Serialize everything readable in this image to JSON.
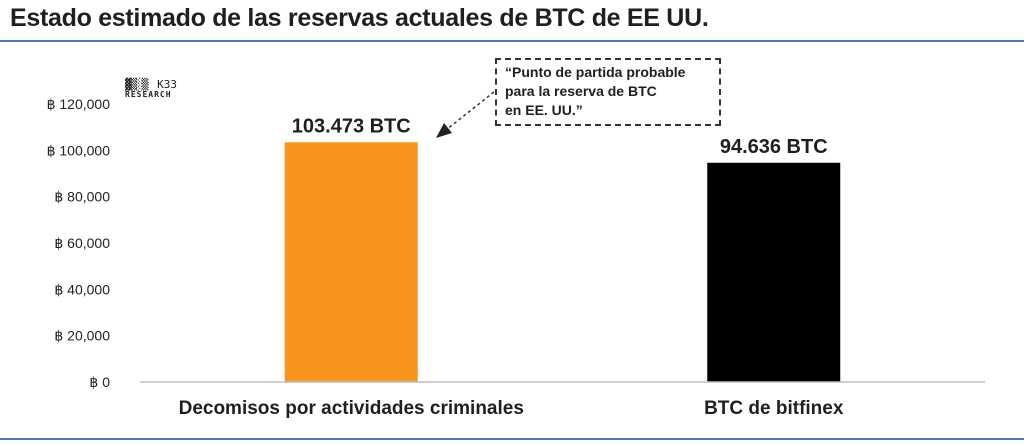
{
  "header": {
    "title": "Estado estimado de las reservas actuales de BTC de EE UU."
  },
  "logo": {
    "mark": "▓▒░▒",
    "name": "K33",
    "sub": "RESEARCH"
  },
  "annotation": {
    "lines": [
      "“Punto de partida probable",
      "para la reserva de BTC",
      "en EE. UU.”"
    ]
  },
  "colors": {
    "bar1": "#f7941d",
    "bar2": "#000000",
    "rule": "#4a78b5"
  },
  "chart_data": {
    "type": "bar",
    "categories": [
      "Decomisos por actividades criminales",
      "BTC de bitfinex"
    ],
    "values": [
      103473,
      94636
    ],
    "data_labels": [
      "103.473 BTC",
      "94.636 BTC"
    ],
    "bar_colors": [
      "#f7941d",
      "#000000"
    ],
    "ylim": [
      0,
      120000
    ],
    "yticks": [
      0,
      20000,
      40000,
      60000,
      80000,
      100000,
      120000
    ],
    "ytick_labels": [
      "฿ 0",
      "฿ 20,000",
      "฿ 40,000",
      "฿ 60,000",
      "฿ 80,000",
      "฿ 100,000",
      "฿ 120,000"
    ],
    "grid": false,
    "title": "Estado estimado de las reservas actuales de BTC de EE UU."
  }
}
